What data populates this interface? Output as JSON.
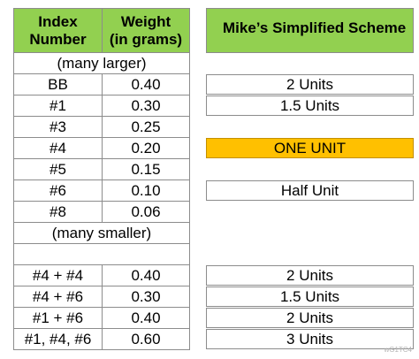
{
  "left_table": {
    "headers": [
      "Index\nNumber",
      "Weight\n(in grams)"
    ],
    "rows": [
      {
        "type": "span",
        "text": "(many larger)"
      },
      {
        "type": "row",
        "index": "BB",
        "weight": "0.40"
      },
      {
        "type": "row",
        "index": "#1",
        "weight": "0.30"
      },
      {
        "type": "row",
        "index": "#3",
        "weight": "0.25"
      },
      {
        "type": "row",
        "index": "#4",
        "weight": "0.20"
      },
      {
        "type": "row",
        "index": "#5",
        "weight": "0.15"
      },
      {
        "type": "row",
        "index": "#6",
        "weight": "0.10"
      },
      {
        "type": "row",
        "index": "#8",
        "weight": "0.06"
      },
      {
        "type": "span",
        "text": "(many smaller)"
      },
      {
        "type": "blank"
      },
      {
        "type": "row",
        "index": "#4 + #4",
        "weight": "0.40"
      },
      {
        "type": "row",
        "index": "#4 + #6",
        "weight": "0.30"
      },
      {
        "type": "row",
        "index": "#1 + #6",
        "weight": "0.40"
      },
      {
        "type": "row",
        "index": "#1, #4, #6",
        "weight": "0.60"
      }
    ]
  },
  "scheme": {
    "header": "Mike’s Simplified Scheme",
    "entries": [
      {
        "label": "2 Units",
        "highlight": false
      },
      {
        "label": "1.5 Units",
        "highlight": false
      },
      {
        "label": "ONE UNIT",
        "highlight": true
      },
      {
        "label": "Half Unit",
        "highlight": false
      },
      {
        "label": "2 Units",
        "highlight": false
      },
      {
        "label": "1.5 Units",
        "highlight": false
      },
      {
        "label": "2 Units",
        "highlight": false
      },
      {
        "label": "3 Units",
        "highlight": false
      }
    ]
  },
  "watermark": "wG1TC4"
}
